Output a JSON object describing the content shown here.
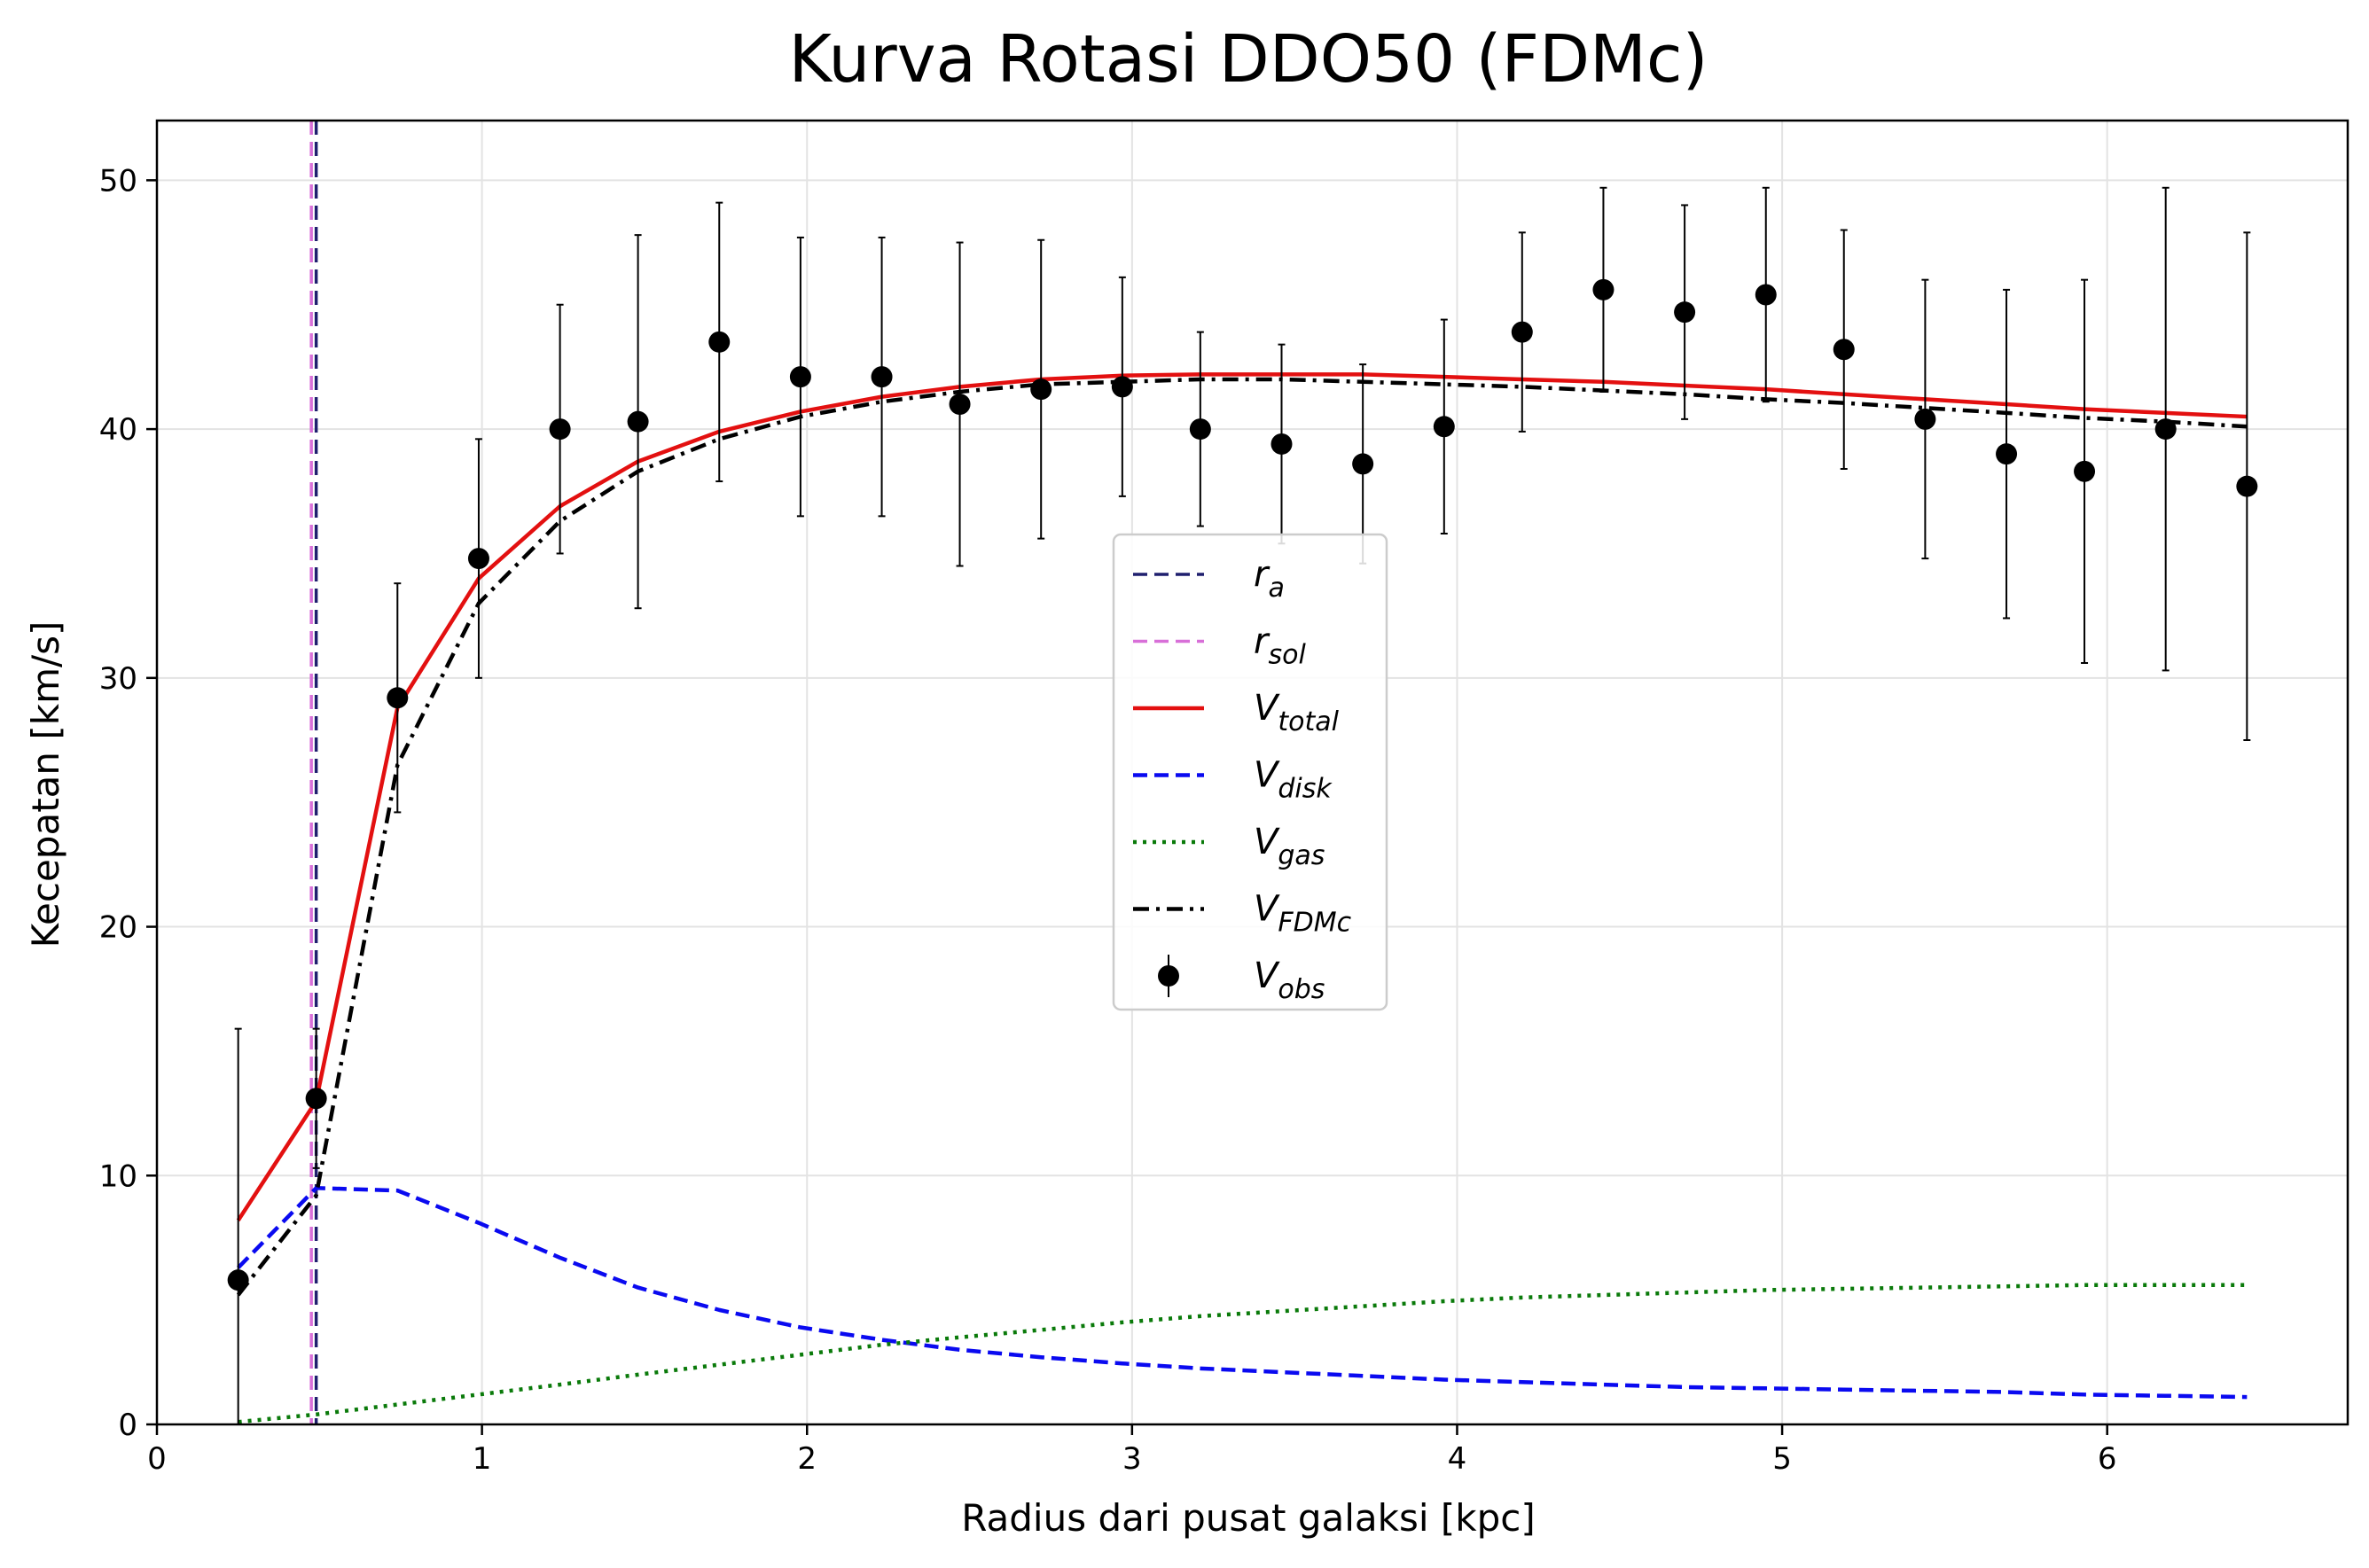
{
  "chart_data": {
    "type": "line",
    "title": "Kurva Rotasi DDO50 (FDMc)",
    "xlabel": "Radius dari pusat galaksi [kpc]",
    "ylabel": "Kecepatan [km/s]",
    "xlim": [
      0,
      6.74
    ],
    "ylim": [
      0,
      52.4
    ],
    "xticks": [
      0,
      1,
      2,
      3,
      4,
      5,
      6
    ],
    "yticks": [
      0,
      10,
      20,
      30,
      40,
      50
    ],
    "xtick_labels": [
      "0",
      "1",
      "2",
      "3",
      "4",
      "5",
      "6"
    ],
    "ytick_labels": [
      "0",
      "10",
      "20",
      "30",
      "40",
      "50"
    ],
    "grid": true,
    "legend_position": "center",
    "x": [
      0.25,
      0.49,
      0.74,
      0.99,
      1.24,
      1.48,
      1.73,
      1.98,
      2.23,
      2.47,
      2.72,
      2.97,
      3.21,
      3.46,
      3.71,
      3.96,
      4.2,
      4.45,
      4.7,
      4.95,
      5.19,
      5.44,
      5.69,
      5.93,
      6.18,
      6.43
    ],
    "vlines": [
      {
        "name": "r_a",
        "label_base": "r",
        "label_sub": "a",
        "x": 0.49,
        "color": "#1f1f6e",
        "style": "dashed"
      },
      {
        "name": "r_sol",
        "label_base": "r",
        "label_sub": "sol",
        "x": 0.475,
        "color": "#d86fd8",
        "style": "dashed"
      }
    ],
    "series": [
      {
        "name": "V_total",
        "label_base": "V",
        "label_sub": "total",
        "color": "#e31010",
        "style": "solid",
        "values": [
          8.2,
          13.0,
          28.8,
          34.0,
          36.9,
          38.7,
          39.9,
          40.7,
          41.3,
          41.7,
          42.0,
          42.15,
          42.2,
          42.2,
          42.2,
          42.1,
          42.0,
          41.9,
          41.75,
          41.6,
          41.4,
          41.2,
          41.0,
          40.8,
          40.65,
          40.5
        ]
      },
      {
        "name": "V_disk",
        "label_base": "V",
        "label_sub": "disk",
        "color": "#0a0af0",
        "style": "dashed",
        "values": [
          6.3,
          9.5,
          9.4,
          8.1,
          6.7,
          5.5,
          4.6,
          3.9,
          3.4,
          3.0,
          2.7,
          2.45,
          2.25,
          2.1,
          1.95,
          1.8,
          1.7,
          1.6,
          1.5,
          1.45,
          1.4,
          1.35,
          1.3,
          1.2,
          1.15,
          1.1
        ]
      },
      {
        "name": "V_gas",
        "label_base": "V",
        "label_sub": "gas",
        "color": "#0a7a0a",
        "style": "dotted",
        "values": [
          0.1,
          0.4,
          0.8,
          1.2,
          1.6,
          2.0,
          2.4,
          2.8,
          3.2,
          3.5,
          3.8,
          4.1,
          4.35,
          4.55,
          4.75,
          4.95,
          5.1,
          5.2,
          5.3,
          5.4,
          5.45,
          5.5,
          5.55,
          5.6,
          5.6,
          5.6
        ]
      },
      {
        "name": "V_FDMc",
        "label_base": "V",
        "label_sub": "FDMc",
        "color": "#000000",
        "style": "dashdot",
        "values": [
          5.2,
          9.2,
          26.5,
          33.0,
          36.3,
          38.3,
          39.6,
          40.5,
          41.1,
          41.5,
          41.8,
          41.9,
          42.0,
          42.0,
          41.9,
          41.8,
          41.7,
          41.55,
          41.4,
          41.2,
          41.05,
          40.85,
          40.65,
          40.45,
          40.3,
          40.1
        ]
      }
    ],
    "observed": {
      "name": "V_obs",
      "label_base": "V",
      "label_sub": "obs",
      "color": "#000000",
      "values": [
        5.8,
        13.1,
        29.2,
        34.8,
        40.0,
        40.3,
        43.5,
        42.1,
        42.1,
        41.0,
        41.6,
        41.7,
        40.0,
        39.4,
        38.6,
        40.1,
        43.9,
        45.6,
        44.7,
        45.4,
        43.2,
        40.4,
        39.0,
        38.3,
        40.0,
        37.7
      ],
      "errors": [
        10.1,
        2.8,
        4.6,
        4.8,
        5.0,
        7.5,
        5.6,
        5.6,
        5.6,
        6.5,
        6.0,
        4.4,
        3.9,
        4.0,
        4.0,
        4.3,
        4.0,
        4.1,
        4.3,
        4.3,
        4.8,
        5.6,
        6.6,
        7.7,
        9.7,
        10.2
      ]
    }
  }
}
